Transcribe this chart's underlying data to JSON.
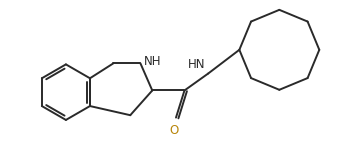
{
  "bg_color": "#ffffff",
  "line_color": "#2a2a2a",
  "label_color_NH": "#2a2a2a",
  "label_color_HN": "#2a2a2a",
  "label_color_O": "#b8860b",
  "line_width": 1.4,
  "fig_width": 3.52,
  "fig_height": 1.64,
  "dpi": 100,
  "xlim": [
    0,
    10.0
  ],
  "ylim": [
    0.2,
    5.0
  ]
}
